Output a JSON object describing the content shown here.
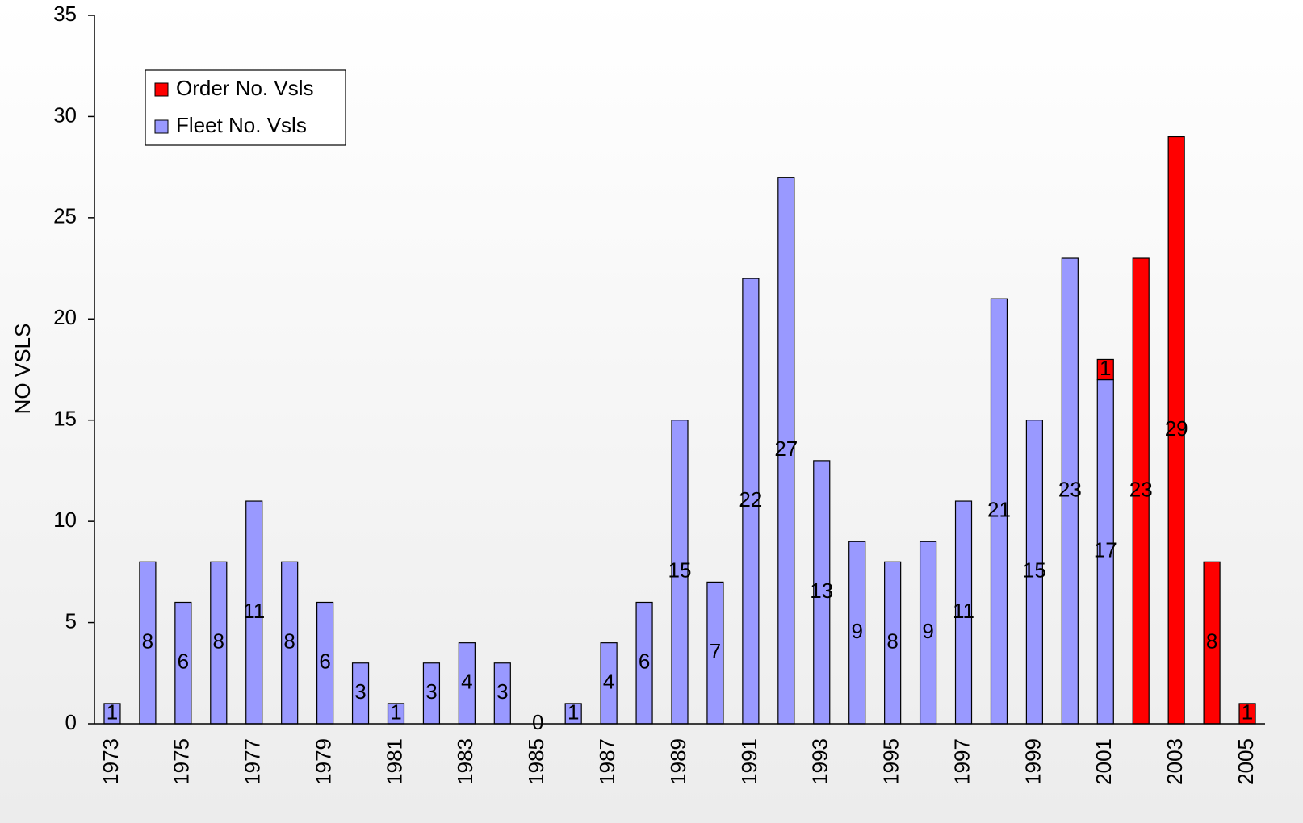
{
  "chart_data": {
    "type": "bar",
    "stacked": true,
    "y_label": "NO VSLS",
    "categories": [
      "1973",
      null,
      "1975",
      null,
      "1977",
      null,
      "1979",
      null,
      "1981",
      null,
      "1983",
      null,
      "1985",
      null,
      "1987",
      null,
      "1989",
      null,
      "1991",
      null,
      "1993",
      null,
      "1995",
      null,
      "1997",
      null,
      "1999",
      null,
      "2001",
      null,
      "2003",
      null,
      "2005"
    ],
    "series": [
      {
        "name": "Fleet No. Vsls",
        "color": "#9999ff",
        "values": [
          1,
          8,
          6,
          8,
          11,
          8,
          6,
          3,
          1,
          3,
          4,
          3,
          0,
          1,
          4,
          6,
          15,
          7,
          22,
          27,
          13,
          9,
          8,
          9,
          11,
          21,
          15,
          23,
          17,
          null,
          null,
          null,
          null
        ]
      },
      {
        "name": "Order No. Vsls",
        "color": "#ff0000",
        "values": [
          null,
          null,
          null,
          null,
          null,
          null,
          null,
          null,
          null,
          null,
          null,
          null,
          null,
          null,
          null,
          null,
          null,
          null,
          null,
          null,
          null,
          null,
          null,
          null,
          null,
          null,
          null,
          null,
          1,
          23,
          29,
          8,
          1
        ]
      }
    ],
    "legend": "top-left",
    "ylim": [
      0,
      35
    ],
    "yticks": [
      0,
      5,
      10,
      15,
      20,
      25,
      30,
      35
    ],
    "grid": false
  }
}
